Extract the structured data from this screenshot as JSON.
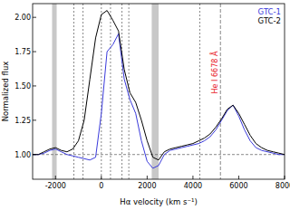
{
  "chart_data": {
    "type": "line",
    "x_label": "Hα velocity (km s⁻¹)",
    "y_label": "Normalized flux",
    "xlim": [
      -3000,
      8000
    ],
    "xticks": [
      -2000,
      0,
      2000,
      4000,
      6000,
      8000
    ],
    "ylim": [
      0.82,
      2.1
    ],
    "yticks": [
      {
        "value": 1,
        "label": "1.00"
      },
      {
        "value": 1.25,
        "label": "1.25"
      },
      {
        "value": 1.5,
        "label": "1.50"
      },
      {
        "value": 1.75,
        "label": "1.75"
      },
      {
        "value": 2,
        "label": "2.00"
      }
    ],
    "legend": "upper right",
    "x": [
      -3000,
      -2750,
      -2500,
      -2250,
      -2000,
      -1750,
      -1500,
      -1250,
      -1000,
      -750,
      -500,
      -250,
      0,
      250,
      500,
      750,
      1000,
      1250,
      1500,
      1750,
      2000,
      2250,
      2500,
      2750,
      3000,
      3250,
      3500,
      3750,
      4000,
      4250,
      4500,
      4750,
      5000,
      5250,
      5500,
      5750,
      6000,
      6250,
      6500,
      6750,
      7000,
      7250,
      7500,
      7750,
      8000
    ],
    "series": [
      {
        "name": "GTC-1",
        "color": "#3a3adb",
        "values": [
          1.0,
          1.0,
          1.01,
          1.03,
          1.04,
          1.02,
          1.0,
          0.99,
          0.98,
          0.97,
          0.96,
          0.98,
          1.3,
          1.75,
          1.8,
          1.88,
          1.55,
          1.4,
          1.3,
          1.1,
          0.95,
          0.9,
          0.92,
          1.0,
          1.03,
          1.04,
          1.05,
          1.06,
          1.07,
          1.08,
          1.1,
          1.13,
          1.18,
          1.25,
          1.32,
          1.36,
          1.28,
          1.18,
          1.1,
          1.05,
          1.03,
          1.02,
          1.01,
          1.0,
          1.0
        ]
      },
      {
        "name": "GTC-2",
        "color": "#000000",
        "values": [
          1.0,
          1.0,
          1.02,
          1.04,
          1.05,
          1.03,
          1.02,
          1.04,
          1.1,
          1.25,
          1.55,
          1.85,
          2.02,
          2.05,
          1.98,
          1.9,
          1.62,
          1.45,
          1.38,
          1.25,
          1.1,
          0.98,
          0.96,
          1.02,
          1.04,
          1.05,
          1.06,
          1.07,
          1.08,
          1.1,
          1.12,
          1.15,
          1.2,
          1.26,
          1.33,
          1.36,
          1.3,
          1.22,
          1.14,
          1.08,
          1.05,
          1.03,
          1.02,
          1.01,
          1.0
        ]
      }
    ],
    "shaded_regions": [
      [
        -2150,
        -1950
      ],
      [
        2200,
        2500
      ]
    ],
    "vlines": [
      -1200,
      -800,
      0,
      400,
      900,
      1200,
      4300
    ],
    "hlines": [
      1
    ],
    "annotation": {
      "text": "He I 6678 Å",
      "x": 5200,
      "color": "#e8141c"
    }
  }
}
